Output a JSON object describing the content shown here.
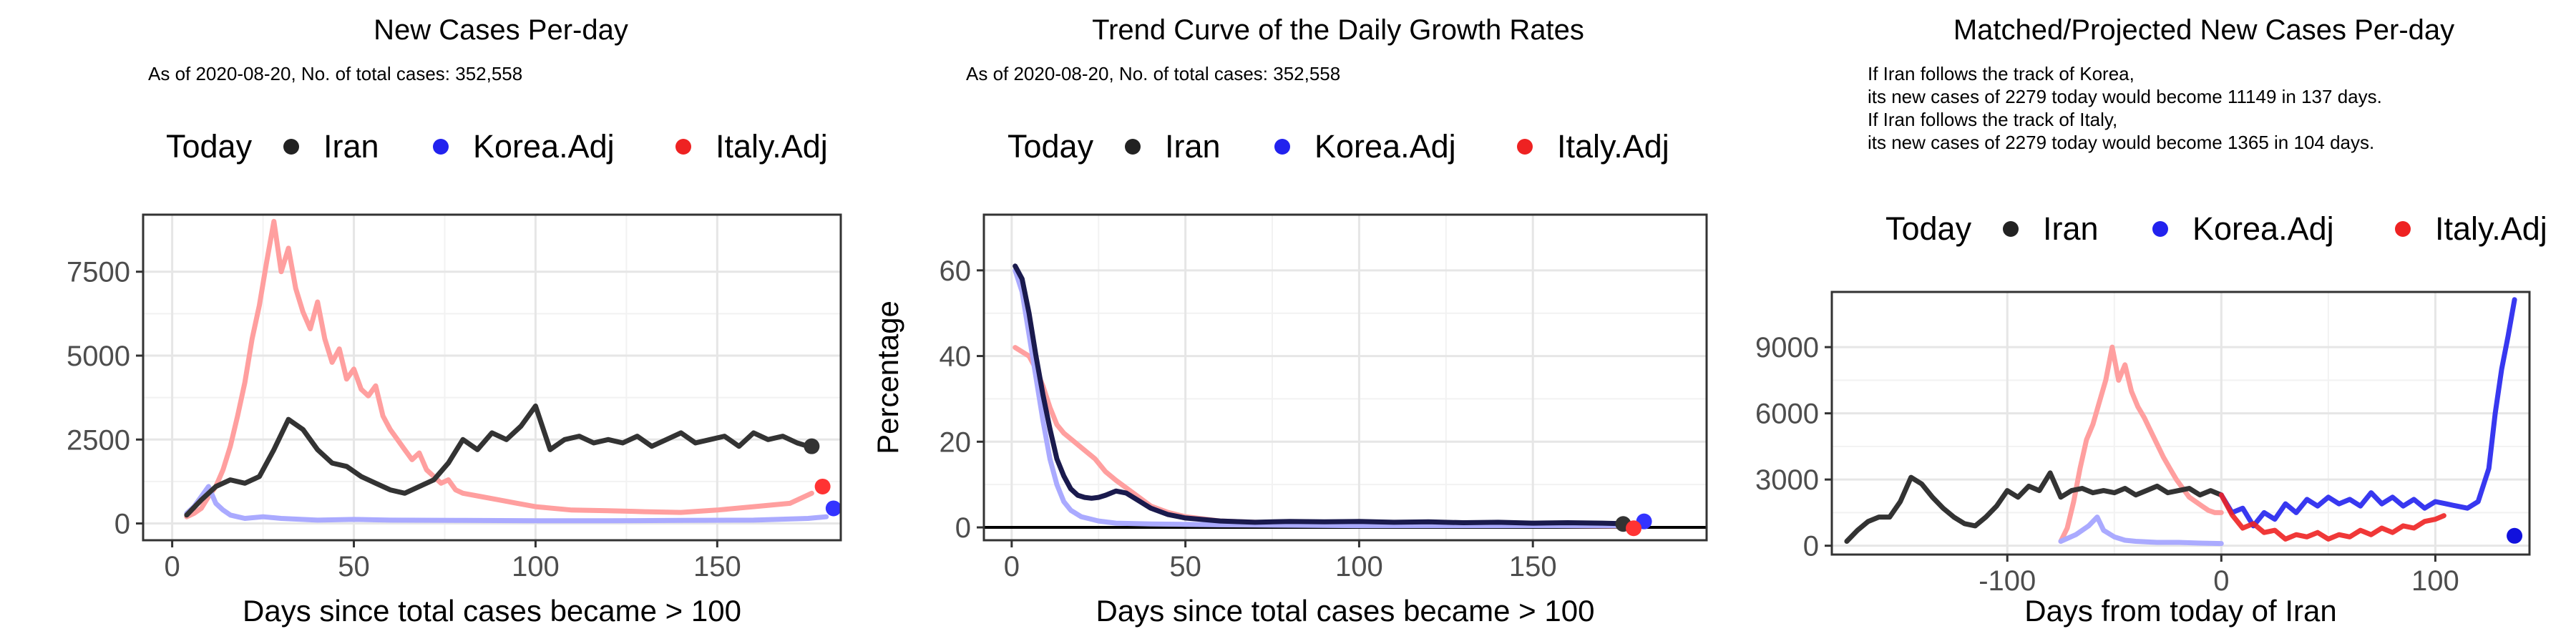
{
  "chart_data": [
    {
      "type": "line",
      "title": "New Cases Per-day",
      "subtitle": "As of 2020-08-20, No. of total cases: 352,558",
      "xlabel": "Days since total cases became > 100",
      "ylabel": "",
      "xlim": [
        -8,
        184
      ],
      "ylim": [
        -500,
        9200
      ],
      "xticks": [
        0,
        50,
        100,
        150
      ],
      "yticks": [
        0,
        2500,
        5000,
        7500
      ],
      "grid": true,
      "legend": {
        "position": "top",
        "title": "Today",
        "entries": [
          "Iran",
          "Korea.Adj",
          "Italy.Adj"
        ]
      },
      "series": [
        {
          "name": "Italy.Adj",
          "color": "#ff9f9f",
          "x": [
            4,
            6,
            8,
            10,
            12,
            14,
            16,
            18,
            20,
            22,
            24,
            26,
            28,
            30,
            32,
            34,
            36,
            38,
            40,
            42,
            44,
            46,
            48,
            50,
            52,
            54,
            56,
            58,
            60,
            62,
            64,
            66,
            68,
            70,
            72,
            74,
            76,
            78,
            80,
            85,
            90,
            95,
            100,
            110,
            120,
            130,
            140,
            150,
            160,
            170,
            176
          ],
          "y": [
            200,
            300,
            450,
            800,
            1100,
            1600,
            2300,
            3200,
            4200,
            5500,
            6500,
            7800,
            9000,
            7500,
            8200,
            7000,
            6300,
            5800,
            6600,
            5500,
            4800,
            5200,
            4300,
            4600,
            4000,
            3800,
            4100,
            3200,
            2800,
            2500,
            2200,
            1900,
            2100,
            1600,
            1400,
            1200,
            1300,
            1000,
            900,
            800,
            700,
            600,
            500,
            400,
            380,
            350,
            330,
            400,
            500,
            600,
            900
          ]
        },
        {
          "name": "Korea.Adj",
          "color": "#aaaaff",
          "x": [
            4,
            6,
            8,
            10,
            12,
            14,
            16,
            18,
            20,
            25,
            30,
            40,
            50,
            60,
            80,
            100,
            120,
            140,
            160,
            175,
            180
          ],
          "y": [
            300,
            500,
            800,
            1100,
            600,
            400,
            250,
            200,
            150,
            200,
            150,
            100,
            120,
            100,
            90,
            80,
            80,
            90,
            100,
            150,
            200
          ]
        },
        {
          "name": "Iran",
          "color": "#333333",
          "x": [
            4,
            8,
            12,
            16,
            20,
            24,
            28,
            32,
            36,
            40,
            44,
            48,
            52,
            56,
            60,
            64,
            68,
            72,
            76,
            80,
            84,
            88,
            92,
            96,
            100,
            104,
            108,
            112,
            116,
            120,
            124,
            128,
            132,
            136,
            140,
            144,
            148,
            152,
            156,
            160,
            164,
            168,
            172,
            175
          ],
          "y": [
            250,
            700,
            1100,
            1300,
            1200,
            1400,
            2200,
            3100,
            2800,
            2200,
            1800,
            1700,
            1400,
            1200,
            1000,
            900,
            1100,
            1300,
            1800,
            2500,
            2200,
            2700,
            2500,
            2900,
            3500,
            2200,
            2500,
            2600,
            2400,
            2500,
            2400,
            2600,
            2300,
            2500,
            2700,
            2400,
            2500,
            2600,
            2300,
            2700,
            2500,
            2600,
            2400,
            2300
          ]
        }
      ],
      "today_points": [
        {
          "name": "Iran",
          "x": 176,
          "y": 2300,
          "color": "#333333"
        },
        {
          "name": "Korea.Adj",
          "x": 182,
          "y": 450,
          "color": "#3333ff"
        },
        {
          "name": "Italy.Adj",
          "x": 179,
          "y": 1100,
          "color": "#ff3333"
        }
      ]
    },
    {
      "type": "line",
      "title": "Trend Curve of the Daily Growth Rates",
      "subtitle": "As of 2020-08-20, No. of total cases: 352,558",
      "xlabel": "Days since total cases became > 100",
      "ylabel": "Percentage",
      "xlim": [
        -8,
        200
      ],
      "ylim": [
        -3,
        73
      ],
      "xticks": [
        0,
        50,
        100,
        150
      ],
      "yticks": [
        0,
        20,
        40,
        60
      ],
      "grid": true,
      "hline": 0,
      "legend": {
        "position": "top",
        "title": "Today",
        "entries": [
          "Iran",
          "Korea.Adj",
          "Italy.Adj"
        ]
      },
      "series": [
        {
          "name": "Italy.Adj",
          "color": "#ff9f9f",
          "x": [
            1,
            3,
            5,
            7,
            9,
            11,
            13,
            15,
            18,
            21,
            24,
            27,
            30,
            35,
            40,
            45,
            50,
            60,
            70,
            80,
            90,
            100,
            120,
            140,
            160,
            178
          ],
          "y": [
            42,
            41,
            40,
            37,
            33,
            28,
            24,
            22,
            20,
            18,
            16,
            13,
            11,
            8,
            5,
            3.5,
            2.5,
            1.5,
            1.2,
            1.0,
            0.9,
            0.8,
            0.6,
            0.5,
            0.4,
            0.3
          ]
        },
        {
          "name": "Korea.Adj",
          "color": "#aaaaff",
          "x": [
            1,
            3,
            5,
            7,
            9,
            11,
            13,
            15,
            17,
            20,
            25,
            30,
            40,
            60,
            80,
            100,
            130,
            160,
            180
          ],
          "y": [
            60,
            55,
            45,
            35,
            25,
            16,
            10,
            6,
            4,
            2.5,
            1.5,
            1,
            0.8,
            0.6,
            0.5,
            0.4,
            0.4,
            0.4,
            0.4
          ]
        },
        {
          "name": "Iran",
          "color": "#1a1a4d",
          "x": [
            1,
            3,
            5,
            7,
            9,
            11,
            13,
            15,
            17,
            19,
            21,
            23,
            25,
            27,
            30,
            33,
            36,
            40,
            45,
            50,
            60,
            70,
            80,
            90,
            100,
            110,
            120,
            130,
            140,
            150,
            160,
            170,
            175
          ],
          "y": [
            61,
            58,
            50,
            40,
            31,
            23,
            16,
            12,
            9,
            7.5,
            7,
            6.8,
            7,
            7.5,
            8.5,
            8,
            6.5,
            4.5,
            3,
            2.2,
            1.5,
            1.2,
            1.4,
            1.3,
            1.4,
            1.2,
            1.3,
            1.1,
            1.2,
            1.0,
            1.1,
            1.0,
            0.9
          ]
        }
      ],
      "today_points": [
        {
          "name": "Iran",
          "x": 176,
          "y": 0.8,
          "color": "#333333"
        },
        {
          "name": "Korea.Adj",
          "x": 182,
          "y": 1.4,
          "color": "#3333ff"
        },
        {
          "name": "Italy.Adj",
          "x": 179,
          "y": -0.2,
          "color": "#ff3333"
        }
      ]
    },
    {
      "type": "line",
      "title": "Matched/Projected New Cases Per-day",
      "annotations": [
        "If Iran follows the track of Korea,",
        "its new cases of 2279 today would become 11149 in 137 days.",
        "If Iran follows the track of Italy,",
        "its new cases of 2279 today would become 1365 in 104 days."
      ],
      "xlabel": "Days from today of Iran",
      "ylabel": "",
      "xlim": [
        -182,
        144
      ],
      "ylim": [
        -400,
        11500
      ],
      "xticks": [
        -100,
        0,
        100
      ],
      "yticks": [
        0,
        3000,
        6000,
        9000
      ],
      "grid": true,
      "legend": {
        "position": "top",
        "title": "Today",
        "entries": [
          "Iran",
          "Korea.Adj",
          "Italy.Adj"
        ]
      },
      "series": [
        {
          "name": "Italy.Adj",
          "color": "#ff9f9f",
          "x": [
            -75,
            -72,
            -69,
            -66,
            -63,
            -60,
            -57,
            -54,
            -51,
            -48,
            -45,
            -42,
            -39,
            -36,
            -33,
            -30,
            -27,
            -24,
            -21,
            -18,
            -15,
            -12,
            -9,
            -6,
            -3,
            0
          ],
          "y": [
            200,
            800,
            2000,
            3500,
            4800,
            5500,
            6500,
            7500,
            9000,
            7500,
            8200,
            7000,
            6300,
            5800,
            5200,
            4600,
            4000,
            3500,
            3000,
            2600,
            2200,
            2000,
            1800,
            1600,
            1500,
            1500
          ]
        },
        {
          "name": "Korea.Adj",
          "color": "#aaaaff",
          "x": [
            -75,
            -68,
            -62,
            -58,
            -55,
            -50,
            -45,
            -40,
            -30,
            -20,
            -10,
            0
          ],
          "y": [
            200,
            500,
            900,
            1300,
            700,
            400,
            250,
            200,
            150,
            150,
            120,
            100
          ]
        },
        {
          "name": "Iran",
          "color": "#333333",
          "x": [
            -175,
            -170,
            -165,
            -160,
            -155,
            -150,
            -145,
            -140,
            -135,
            -130,
            -125,
            -120,
            -115,
            -110,
            -105,
            -100,
            -95,
            -90,
            -85,
            -80,
            -75,
            -70,
            -65,
            -60,
            -55,
            -50,
            -45,
            -40,
            -35,
            -30,
            -25,
            -20,
            -15,
            -10,
            -5,
            0
          ],
          "y": [
            200,
            700,
            1100,
            1300,
            1300,
            2000,
            3100,
            2800,
            2200,
            1700,
            1300,
            1000,
            900,
            1300,
            1800,
            2500,
            2200,
            2700,
            2500,
            3300,
            2200,
            2500,
            2600,
            2400,
            2500,
            2400,
            2600,
            2300,
            2500,
            2700,
            2400,
            2500,
            2600,
            2300,
            2500,
            2300
          ]
        },
        {
          "name": "Korea.Adj projected",
          "color": "#2222ee",
          "dashed": true,
          "x": [
            0,
            5,
            10,
            15,
            20,
            25,
            30,
            35,
            40,
            45,
            50,
            55,
            60,
            65,
            70,
            75,
            80,
            85,
            90,
            95,
            100,
            105,
            110,
            115,
            120,
            125,
            128,
            131,
            134,
            137
          ],
          "y": [
            2300,
            1500,
            1700,
            900,
            1500,
            1200,
            1900,
            1500,
            2100,
            1800,
            2200,
            1900,
            2100,
            1800,
            2400,
            1900,
            2200,
            1800,
            2100,
            1700,
            2000,
            1900,
            1800,
            1700,
            2000,
            3500,
            6000,
            8000,
            9500,
            11149
          ]
        },
        {
          "name": "Italy.Adj projected",
          "color": "#ee2222",
          "dashed": true,
          "x": [
            0,
            5,
            10,
            15,
            20,
            25,
            30,
            35,
            40,
            45,
            50,
            55,
            60,
            65,
            70,
            75,
            80,
            85,
            90,
            95,
            100,
            104
          ],
          "y": [
            2300,
            1400,
            800,
            1000,
            600,
            700,
            300,
            500,
            400,
            600,
            300,
            500,
            400,
            700,
            500,
            800,
            600,
            900,
            800,
            1100,
            1200,
            1365
          ]
        }
      ],
      "today_points": [
        {
          "name": "Korea.Adj",
          "x": 137,
          "y": 450,
          "color": "#1111dd"
        }
      ]
    }
  ]
}
